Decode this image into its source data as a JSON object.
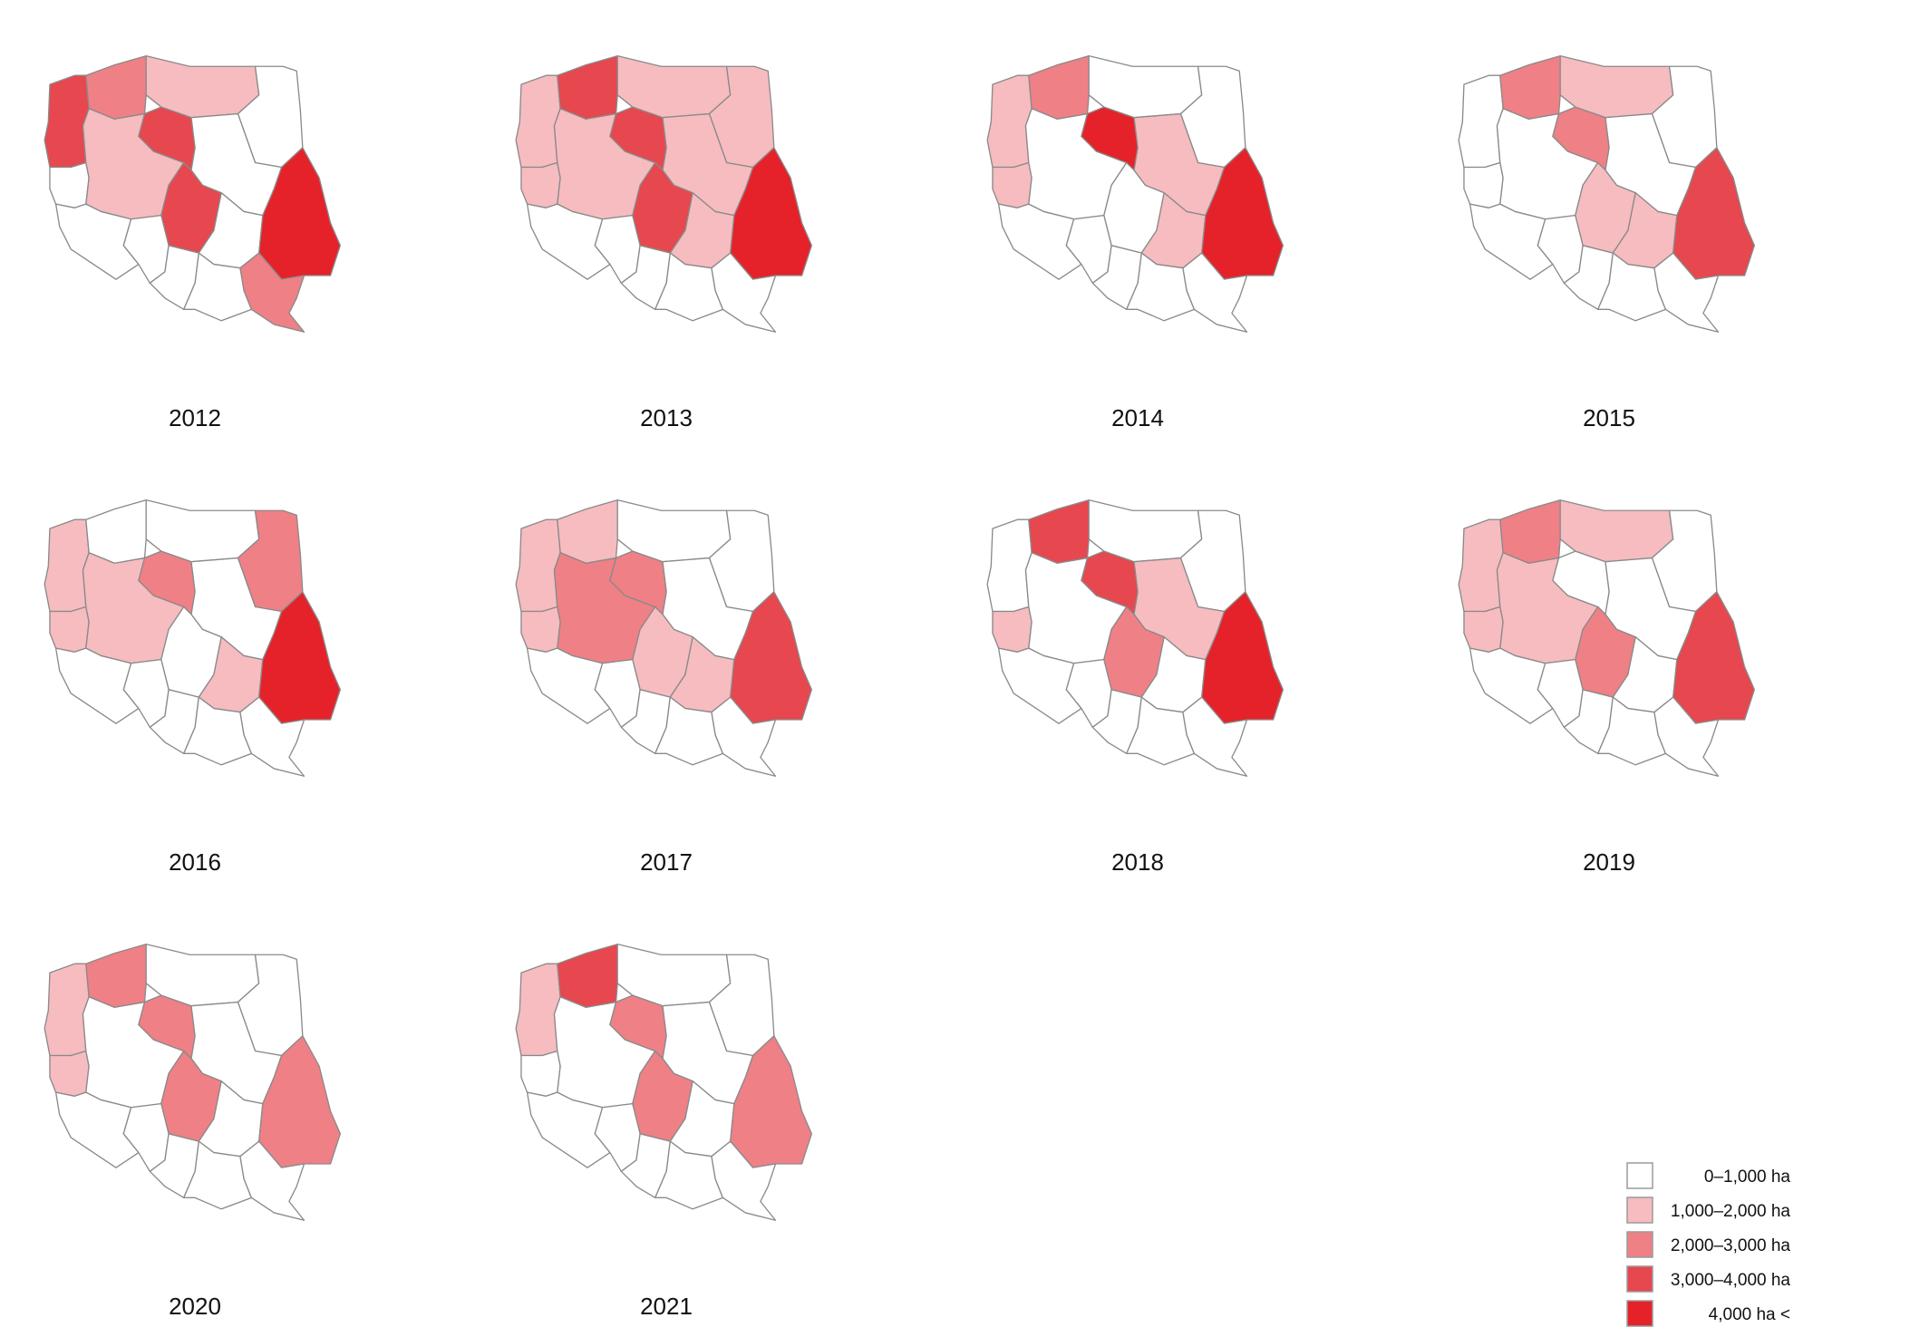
{
  "colors": {
    "c0": "#ffffff",
    "c1": "#f6bcc0",
    "c2": "#ef8086",
    "c3": "#e7474e",
    "c4": "#e52229",
    "border": "#8a8a8a",
    "legend_border": "#9a9a9a",
    "text": "#111111"
  },
  "legend": {
    "items": [
      {
        "label": "0–1,000 ha",
        "cls": "c0"
      },
      {
        "label": "1,000–2,000 ha",
        "cls": "c1"
      },
      {
        "label": "2,000–3,000 ha",
        "cls": "c2"
      },
      {
        "label": "3,000–4,000 ha",
        "cls": "c3"
      },
      {
        "label": "4,000 ha <",
        "cls": "c4"
      }
    ]
  },
  "maps": [
    {
      "year": "2012",
      "regions": {
        "zp": 3,
        "pm": 2,
        "wm": 1,
        "pd": 0,
        "lb": 0,
        "wp": 1,
        "kp": 3,
        "mz": 0,
        "ld": 3,
        "ds": 0,
        "op": 0,
        "sl": 0,
        "sk": 0,
        "lu": 4,
        "mp": 0,
        "pk": 2
      }
    },
    {
      "year": "2013",
      "regions": {
        "zp": 1,
        "pm": 3,
        "wm": 1,
        "pd": 1,
        "lb": 1,
        "wp": 1,
        "kp": 3,
        "mz": 1,
        "ld": 3,
        "ds": 0,
        "op": 0,
        "sl": 0,
        "sk": 1,
        "lu": 4,
        "mp": 0,
        "pk": 0
      }
    },
    {
      "year": "2014",
      "regions": {
        "zp": 1,
        "pm": 2,
        "wm": 0,
        "pd": 0,
        "lb": 1,
        "wp": 0,
        "kp": 4,
        "mz": 1,
        "ld": 0,
        "ds": 0,
        "op": 0,
        "sl": 0,
        "sk": 1,
        "lu": 4,
        "mp": 0,
        "pk": 0
      }
    },
    {
      "year": "2015",
      "regions": {
        "zp": 0,
        "pm": 2,
        "wm": 1,
        "pd": 0,
        "lb": 0,
        "wp": 0,
        "kp": 2,
        "mz": 0,
        "ld": 1,
        "ds": 0,
        "op": 0,
        "sl": 0,
        "sk": 1,
        "lu": 3,
        "mp": 0,
        "pk": 0
      }
    },
    {
      "year": "2016",
      "regions": {
        "zp": 1,
        "pm": 0,
        "wm": 0,
        "pd": 2,
        "lb": 1,
        "wp": 1,
        "kp": 2,
        "mz": 0,
        "ld": 0,
        "ds": 0,
        "op": 0,
        "sl": 0,
        "sk": 1,
        "lu": 4,
        "mp": 0,
        "pk": 0
      }
    },
    {
      "year": "2017",
      "regions": {
        "zp": 1,
        "pm": 1,
        "wm": 0,
        "pd": 0,
        "lb": 1,
        "wp": 2,
        "kp": 2,
        "mz": 0,
        "ld": 1,
        "ds": 0,
        "op": 0,
        "sl": 0,
        "sk": 1,
        "lu": 3,
        "mp": 0,
        "pk": 0
      }
    },
    {
      "year": "2018",
      "regions": {
        "zp": 0,
        "pm": 3,
        "wm": 0,
        "pd": 0,
        "lb": 1,
        "wp": 0,
        "kp": 3,
        "mz": 1,
        "ld": 2,
        "ds": 0,
        "op": 0,
        "sl": 0,
        "sk": 0,
        "lu": 4,
        "mp": 0,
        "pk": 0
      }
    },
    {
      "year": "2019",
      "regions": {
        "zp": 1,
        "pm": 2,
        "wm": 1,
        "pd": 0,
        "lb": 1,
        "wp": 1,
        "kp": 0,
        "mz": 0,
        "ld": 2,
        "ds": 0,
        "op": 0,
        "sl": 0,
        "sk": 0,
        "lu": 3,
        "mp": 0,
        "pk": 0
      }
    },
    {
      "year": "2020",
      "regions": {
        "zp": 1,
        "pm": 2,
        "wm": 0,
        "pd": 0,
        "lb": 1,
        "wp": 0,
        "kp": 2,
        "mz": 0,
        "ld": 2,
        "ds": 0,
        "op": 0,
        "sl": 0,
        "sk": 0,
        "lu": 2,
        "mp": 0,
        "pk": 0
      }
    },
    {
      "year": "2021",
      "regions": {
        "zp": 1,
        "pm": 3,
        "wm": 0,
        "pd": 0,
        "lb": 0,
        "wp": 0,
        "kp": 2,
        "mz": 0,
        "ld": 2,
        "ds": 0,
        "op": 0,
        "sl": 0,
        "sk": 0,
        "lu": 2,
        "mp": 0,
        "pk": 0
      }
    }
  ]
}
